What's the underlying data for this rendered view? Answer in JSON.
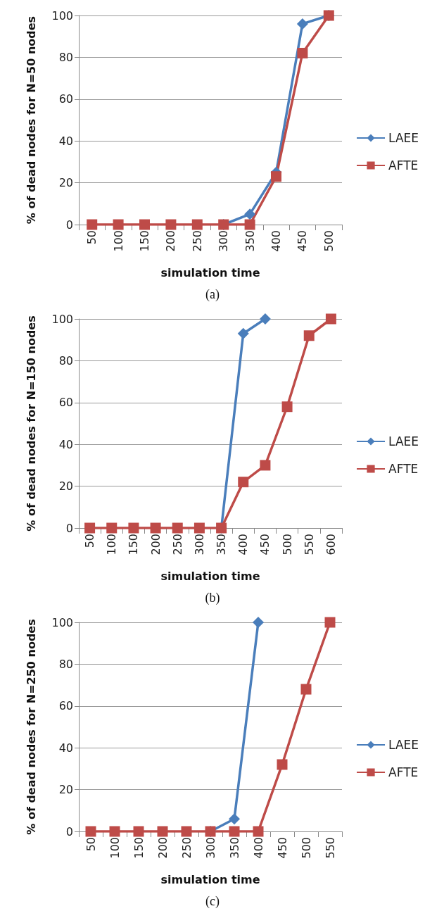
{
  "chart_data": [
    {
      "type": "line",
      "xlabel": "simulation time",
      "ylabel": "% of dead nodes for N=50 nodes",
      "categories": [
        "50",
        "100",
        "150",
        "200",
        "250",
        "300",
        "350",
        "400",
        "450",
        "500"
      ],
      "ylim": [
        0,
        100
      ],
      "yticks": [
        0,
        20,
        40,
        60,
        80,
        100
      ],
      "grid": "y",
      "legend": "right",
      "annotations": [
        "(a)"
      ],
      "series": [
        {
          "name": "LAEE",
          "color": "#4a7ebb",
          "marker": "diamond",
          "values": [
            null,
            null,
            null,
            null,
            null,
            0,
            5,
            25,
            96,
            100
          ]
        },
        {
          "name": "AFTE",
          "color": "#be4b48",
          "marker": "square",
          "values": [
            0,
            0,
            0,
            0,
            0,
            0,
            0,
            23,
            82,
            100
          ]
        }
      ]
    },
    {
      "type": "line",
      "xlabel": "simulation time",
      "ylabel": "% of dead nodes for N=150 nodes",
      "categories": [
        "50",
        "100",
        "150",
        "200",
        "250",
        "300",
        "350",
        "400",
        "450",
        "500",
        "550",
        "600"
      ],
      "ylim": [
        0,
        100
      ],
      "yticks": [
        0,
        20,
        40,
        60,
        80,
        100
      ],
      "grid": "y",
      "legend": "right",
      "annotations": [
        "(b)"
      ],
      "series": [
        {
          "name": "LAEE",
          "color": "#4a7ebb",
          "marker": "diamond",
          "values": [
            null,
            null,
            null,
            null,
            null,
            null,
            0,
            93,
            100,
            null,
            null,
            null
          ]
        },
        {
          "name": "AFTE",
          "color": "#be4b48",
          "marker": "square",
          "values": [
            0,
            0,
            0,
            0,
            0,
            0,
            0,
            22,
            30,
            58,
            92,
            100
          ]
        }
      ]
    },
    {
      "type": "line",
      "xlabel": "simulation time",
      "ylabel": "% of dead nodes for N=250 nodes",
      "categories": [
        "50",
        "100",
        "150",
        "200",
        "250",
        "300",
        "350",
        "400",
        "450",
        "500",
        "550"
      ],
      "ylim": [
        0,
        100
      ],
      "yticks": [
        0,
        20,
        40,
        60,
        80,
        100
      ],
      "grid": "y",
      "legend": "right",
      "annotations": [
        "(c)"
      ],
      "series": [
        {
          "name": "LAEE",
          "color": "#4a7ebb",
          "marker": "diamond",
          "values": [
            null,
            null,
            null,
            null,
            null,
            0,
            6,
            100,
            null,
            null,
            null
          ]
        },
        {
          "name": "AFTE",
          "color": "#be4b48",
          "marker": "square",
          "values": [
            0,
            0,
            0,
            0,
            0,
            0,
            0,
            0,
            32,
            68,
            100
          ]
        }
      ]
    }
  ]
}
